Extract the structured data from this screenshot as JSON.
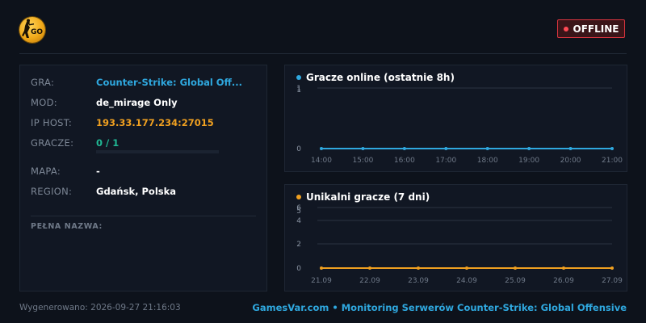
{
  "header": {
    "logo_text": "GO",
    "status": "OFFLINE",
    "status_color": "#d8343e"
  },
  "info": {
    "game_label": "GRA:",
    "game_value": "Counter-Strike: Global Off...",
    "mod_label": "MOD:",
    "mod_value": "de_mirage Only",
    "ip_label": "IP HOST:",
    "ip_value": "193.33.177.234:27015",
    "players_label": "GRACZE:",
    "players_value": "0 / 1",
    "players_fill_fraction": 0,
    "map_label": "MAPA:",
    "map_value": "-",
    "region_label": "REGION:",
    "region_value": "Gdańsk, Polska",
    "fullname_label": "PEŁNA NAZWA:"
  },
  "chart_data": [
    {
      "type": "line",
      "title": "Gracze online (ostatnie 8h)",
      "color": "#2fa8df",
      "x": [
        "14:00",
        "15:00",
        "16:00",
        "17:00",
        "18:00",
        "19:00",
        "20:00",
        "21:00"
      ],
      "series": [
        {
          "values": [
            0,
            0,
            0,
            0,
            0,
            0,
            0,
            0
          ]
        }
      ],
      "yticks": [
        "1",
        "1",
        "0"
      ],
      "ylim": [
        0,
        1
      ],
      "grid": true
    },
    {
      "type": "line",
      "title": "Unikalni gracze (7 dni)",
      "color": "#f0a020",
      "x": [
        "21.09",
        "22.09",
        "23.09",
        "24.09",
        "25.09",
        "26.09",
        "27.09"
      ],
      "series": [
        {
          "values": [
            0,
            0,
            0,
            0,
            0,
            0,
            0
          ]
        }
      ],
      "yticks": [
        "6",
        "5",
        "4",
        "2",
        "0"
      ],
      "ylim": [
        0,
        6
      ],
      "grid": true
    }
  ],
  "footer": {
    "generated": "Wygenerowano: 2026-09-27 21:16:03",
    "brand": "GamesVar.com • Monitoring Serwerów Counter-Strike: Global Offensive"
  }
}
